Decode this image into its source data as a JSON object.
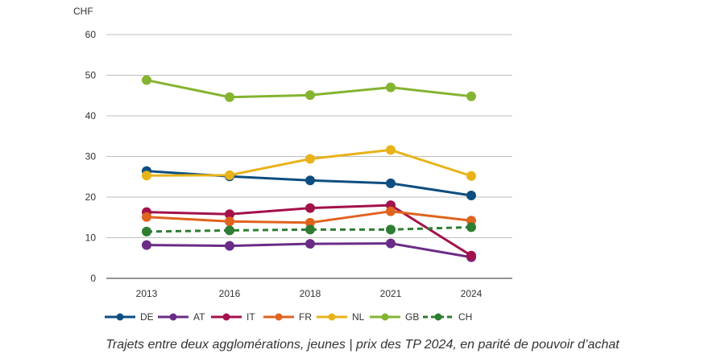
{
  "caption": "Trajets entre deux agglomérations, jeunes | prix des TP 2024, en parité de pouvoir d’achat",
  "chart_data": {
    "type": "line",
    "ylabel": "CHF",
    "ylim": [
      0,
      60
    ],
    "yticks": [
      0,
      10,
      20,
      30,
      40,
      50,
      60
    ],
    "grid": true,
    "legend_position": "bottom",
    "categories": [
      "2013",
      "2016",
      "2018",
      "2021",
      "2024"
    ],
    "series": [
      {
        "name": "DE",
        "color": "#0d4e80",
        "dashed": false,
        "values": [
          26.4,
          25.1,
          24.1,
          23.4,
          20.4
        ]
      },
      {
        "name": "AT",
        "color": "#6a2c86",
        "dashed": false,
        "values": [
          8.2,
          8.0,
          8.5,
          8.6,
          5.2
        ]
      },
      {
        "name": "IT",
        "color": "#a3114a",
        "dashed": false,
        "values": [
          16.3,
          15.8,
          17.3,
          18.0,
          5.6
        ]
      },
      {
        "name": "FR",
        "color": "#e0631e",
        "dashed": false,
        "values": [
          15.1,
          14.0,
          13.7,
          16.5,
          14.2
        ]
      },
      {
        "name": "NL",
        "color": "#e8b319",
        "dashed": false,
        "values": [
          25.3,
          25.4,
          29.4,
          31.6,
          25.2
        ]
      },
      {
        "name": "GB",
        "color": "#84b431",
        "dashed": false,
        "values": [
          48.8,
          44.6,
          45.1,
          47.0,
          44.8
        ]
      },
      {
        "name": "CH",
        "color": "#2e7d32",
        "dashed": true,
        "values": [
          11.5,
          11.8,
          12.0,
          12.0,
          12.6
        ]
      }
    ]
  }
}
